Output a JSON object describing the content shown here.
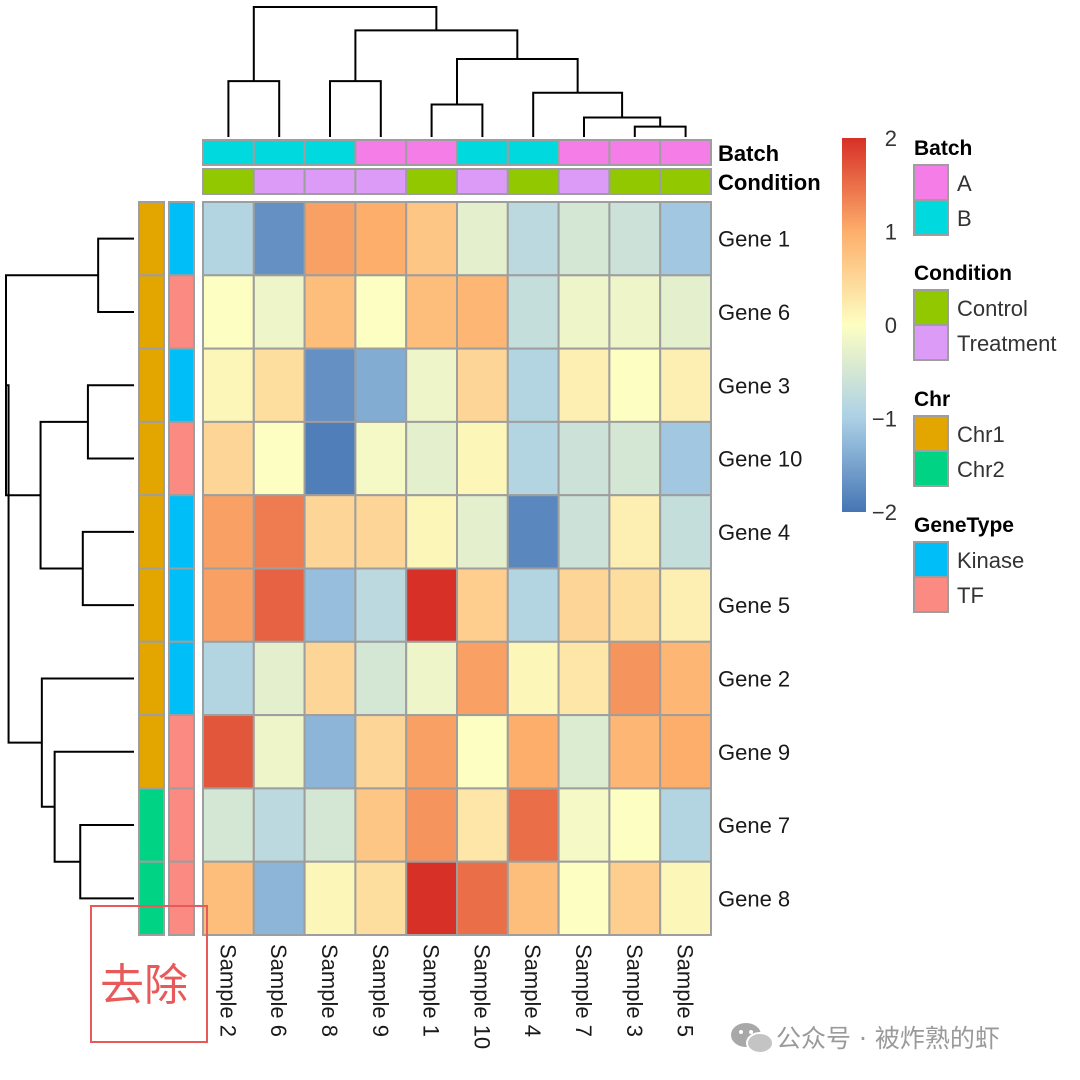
{
  "chart_data": {
    "type": "heatmap",
    "rows": [
      "Gene 1",
      "Gene 6",
      "Gene 3",
      "Gene 10",
      "Gene 4",
      "Gene 5",
      "Gene 2",
      "Gene 9",
      "Gene 7",
      "Gene 8"
    ],
    "columns": [
      "Sample 2",
      "Sample 6",
      "Sample 8",
      "Sample 9",
      "Sample 1",
      "Sample 10",
      "Sample 4",
      "Sample 7",
      "Sample 3",
      "Sample 5"
    ],
    "values": [
      [
        -0.9,
        -1.7,
        1.1,
        1.0,
        0.7,
        -0.3,
        -0.8,
        -0.5,
        -0.6,
        -1.1
      ],
      [
        0.0,
        -0.2,
        0.8,
        0.0,
        0.8,
        0.9,
        -0.7,
        -0.2,
        -0.2,
        -0.3
      ],
      [
        0.1,
        0.4,
        -1.7,
        -1.4,
        -0.2,
        0.5,
        -0.9,
        0.2,
        0.0,
        0.2
      ],
      [
        0.5,
        0.0,
        -1.9,
        -0.1,
        -0.3,
        0.1,
        -0.9,
        -0.6,
        -0.5,
        -1.1
      ],
      [
        1.1,
        1.4,
        0.5,
        0.5,
        0.1,
        -0.3,
        -1.8,
        -0.6,
        0.2,
        -0.7
      ],
      [
        1.1,
        1.6,
        -1.2,
        -0.8,
        2.0,
        0.6,
        -0.9,
        0.5,
        0.4,
        0.2
      ],
      [
        -0.9,
        -0.3,
        0.5,
        -0.5,
        -0.2,
        1.1,
        0.1,
        0.3,
        1.2,
        0.9
      ],
      [
        1.7,
        -0.2,
        -1.3,
        0.5,
        1.1,
        0.0,
        1.0,
        -0.4,
        0.9,
        1.0
      ],
      [
        -0.5,
        -0.8,
        -0.5,
        0.7,
        1.2,
        0.3,
        1.5,
        -0.1,
        0.0,
        -0.9
      ],
      [
        0.8,
        -1.3,
        0.1,
        0.4,
        2.0,
        1.5,
        0.8,
        0.0,
        0.6,
        0.1
      ]
    ],
    "color_scale": {
      "min": -2,
      "max": 2,
      "stops": [
        {
          "value": -2,
          "color": "#4575b4"
        },
        {
          "value": -1,
          "color": "#abd0e6"
        },
        {
          "value": 0,
          "color": "#fdfec2"
        },
        {
          "value": 1,
          "color": "#fdae6b"
        },
        {
          "value": 2,
          "color": "#d73027"
        }
      ],
      "ticks": [
        {
          "value": 2,
          "label": "2"
        },
        {
          "value": 1,
          "label": "1"
        },
        {
          "value": 0,
          "label": "0"
        },
        {
          "value": -1,
          "label": "−1"
        },
        {
          "value": -2,
          "label": "−2"
        }
      ]
    },
    "column_annotations": [
      {
        "name": "Batch",
        "values": [
          "B",
          "B",
          "B",
          "A",
          "A",
          "B",
          "B",
          "A",
          "A",
          "A"
        ]
      },
      {
        "name": "Condition",
        "values": [
          "Control",
          "Treatment",
          "Treatment",
          "Treatment",
          "Control",
          "Treatment",
          "Control",
          "Treatment",
          "Control",
          "Control"
        ]
      }
    ],
    "row_annotations": [
      {
        "name": "Chr",
        "values": [
          "Chr1",
          "Chr1",
          "Chr1",
          "Chr1",
          "Chr1",
          "Chr1",
          "Chr1",
          "Chr1",
          "Chr2",
          "Chr2"
        ]
      },
      {
        "name": "GeneType",
        "values": [
          "Kinase",
          "TF",
          "Kinase",
          "TF",
          "Kinase",
          "Kinase",
          "Kinase",
          "TF",
          "TF",
          "TF"
        ]
      }
    ],
    "legends": [
      {
        "title": "Batch",
        "items": [
          {
            "label": "A",
            "color": "#f57de8"
          },
          {
            "label": "B",
            "color": "#00dade"
          }
        ]
      },
      {
        "title": "Condition",
        "items": [
          {
            "label": "Control",
            "color": "#92c800"
          },
          {
            "label": "Treatment",
            "color": "#dc9bf7"
          }
        ]
      },
      {
        "title": "Chr",
        "items": [
          {
            "label": "Chr1",
            "color": "#e3a600"
          },
          {
            "label": "Chr2",
            "color": "#00d383"
          }
        ]
      },
      {
        "title": "GeneType",
        "items": [
          {
            "label": "Kinase",
            "color": "#00bff8"
          },
          {
            "label": "TF",
            "color": "#fb8a83"
          }
        ]
      }
    ],
    "column_dendrogram": [
      {
        "a": 0,
        "b": 1,
        "h": 0.43
      },
      {
        "a": 2,
        "b": 3,
        "h": 0.43
      },
      {
        "a": 4,
        "b": 5,
        "h": 0.25
      },
      {
        "a": 8,
        "b": 9,
        "h": 0.08
      },
      {
        "a": 7,
        "b": 13,
        "h": 0.15
      },
      {
        "a": 6,
        "b": 14,
        "h": 0.34
      },
      {
        "a": 12,
        "b": 15,
        "h": 0.6
      },
      {
        "a": 11,
        "b": 16,
        "h": 0.82
      },
      {
        "a": 10,
        "b": 17,
        "h": 1.0
      }
    ],
    "row_dendrogram": [
      {
        "a": 0,
        "b": 1,
        "h": 0.28
      },
      {
        "a": 2,
        "b": 3,
        "h": 0.36
      },
      {
        "a": 4,
        "b": 5,
        "h": 0.4
      },
      {
        "a": 8,
        "b": 9,
        "h": 0.42
      },
      {
        "a": 7,
        "b": 13,
        "h": 0.62
      },
      {
        "a": 6,
        "b": 14,
        "h": 0.72
      },
      {
        "a": 11,
        "b": 12,
        "h": 0.73
      },
      {
        "a": 10,
        "b": 16,
        "h": 1.0
      },
      {
        "a": 17,
        "b": 15,
        "h": 0.98
      }
    ],
    "removed_label": "去除",
    "watermark": "公众号 · 被炸熟的虾"
  }
}
